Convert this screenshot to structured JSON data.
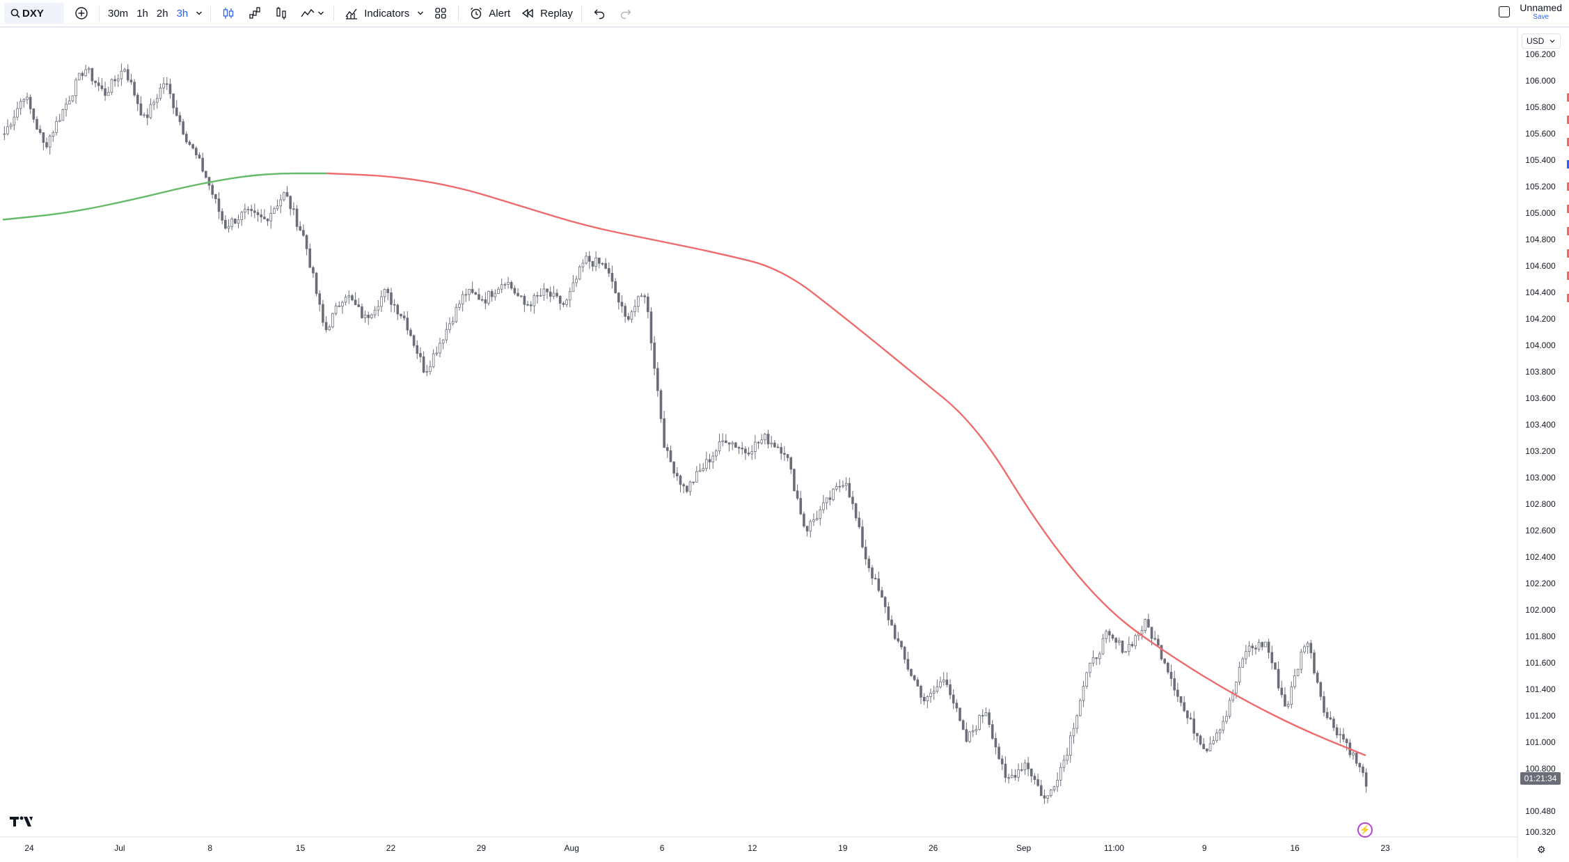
{
  "toolbar": {
    "symbol": "DXY",
    "timeframes": [
      "30m",
      "1h",
      "2h",
      "3h"
    ],
    "active_timeframe": "3h",
    "indicators_label": "Indicators",
    "alert_label": "Alert",
    "replay_label": "Replay",
    "layout_name": "Unnamed",
    "save_label": "Save"
  },
  "price_axis": {
    "currency": "USD",
    "labels": [
      "106.200",
      "106.000",
      "105.800",
      "105.600",
      "105.400",
      "105.200",
      "105.000",
      "104.800",
      "104.600",
      "104.400",
      "104.200",
      "104.000",
      "103.800",
      "103.600",
      "103.400",
      "103.200",
      "103.000",
      "102.800",
      "102.600",
      "102.400",
      "102.200",
      "102.000",
      "101.800",
      "101.600",
      "101.400",
      "101.200",
      "101.000",
      "100.800",
      "100.480",
      "100.320"
    ],
    "countdown": "01:21:34"
  },
  "time_axis": {
    "labels": [
      "24",
      "Jul",
      "8",
      "15",
      "22",
      "29",
      "Aug",
      "6",
      "12",
      "19",
      "26",
      "Sep",
      "11:00",
      "9",
      "16",
      "23"
    ]
  },
  "chart_data": {
    "type": "line",
    "title": "",
    "xlabel": "",
    "ylabel": "",
    "ylim": [
      100.3,
      106.3
    ],
    "grid": false,
    "colors": {
      "candle": "#6a6d78",
      "ma_up": "#66bb6a",
      "ma_down": "#ef6a6a"
    },
    "series": [
      {
        "values": [
          105.6,
          105.9,
          105.5,
          105.8,
          106.1,
          105.9,
          106.1,
          105.7,
          106.0,
          105.6,
          105.3,
          104.9,
          105.0,
          104.95,
          105.15,
          104.8,
          104.1,
          104.4,
          104.2,
          104.4,
          104.2,
          103.8,
          104.1,
          104.4,
          104.35,
          104.5,
          104.3,
          104.4,
          104.3,
          104.65,
          104.6,
          104.2,
          104.4,
          103.2,
          102.9,
          103.1,
          103.3,
          103.2,
          103.3,
          103.2,
          102.6,
          102.8,
          103.0,
          102.4,
          102.0,
          101.6,
          101.3,
          101.5,
          101.0,
          101.25,
          100.7,
          100.85,
          100.55,
          100.9,
          101.5,
          101.8,
          101.7,
          101.9,
          101.6,
          101.2,
          100.95,
          101.2,
          101.7,
          101.75,
          101.25,
          101.8,
          101.2,
          101.0,
          100.7
        ]
      },
      {
        "values": [
          104.95,
          105.0,
          105.1,
          105.22,
          105.3,
          105.3,
          105.28,
          105.2,
          105.05,
          104.9,
          104.8,
          104.7,
          104.58,
          104.2,
          103.8,
          103.4,
          102.6,
          102.0,
          101.65,
          101.35,
          101.1,
          100.9
        ]
      }
    ]
  }
}
